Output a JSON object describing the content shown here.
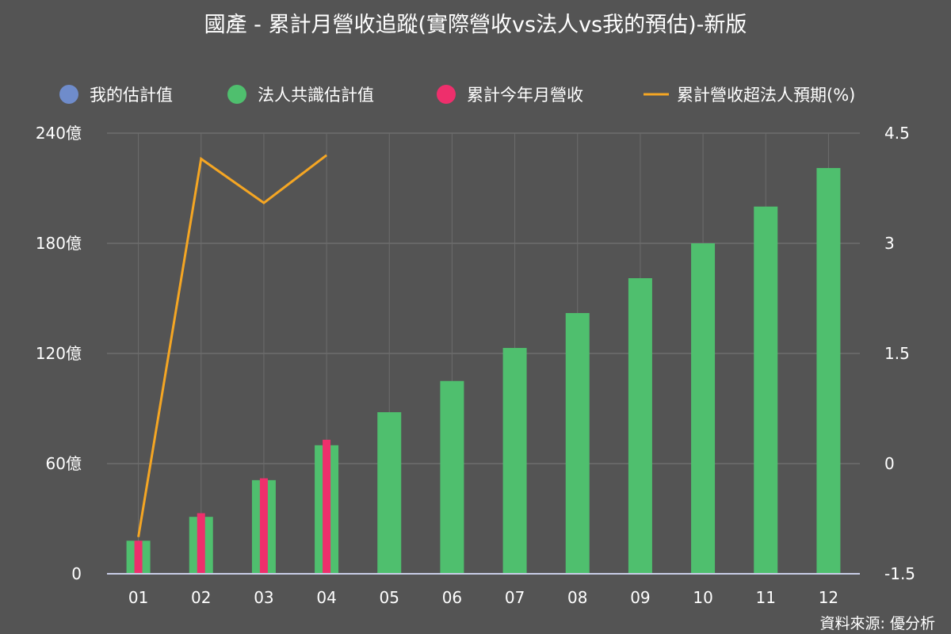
{
  "chart_data": {
    "type": "bar",
    "title": "國產 - 累計月營收追蹤(實際營收vs法人vs我的預估)-新版",
    "categories": [
      "01",
      "02",
      "03",
      "04",
      "05",
      "06",
      "07",
      "08",
      "09",
      "10",
      "11",
      "12"
    ],
    "legend": {
      "placement": "top",
      "items": [
        {
          "label": "我的估計值",
          "color": "#6f8ccb",
          "marker": "circle"
        },
        {
          "label": "法人共識估計值",
          "color": "#4fbf6e",
          "marker": "circle"
        },
        {
          "label": "累計今年月營收",
          "color": "#ee2f6c",
          "marker": "circle"
        },
        {
          "label": "累計營收超法人預期(%)",
          "color": "#f5a623",
          "marker": "line"
        }
      ]
    },
    "series": [
      {
        "name": "我的估計值",
        "type": "bar",
        "axis": "left",
        "color": "#6f8ccb",
        "values": [
          null,
          null,
          null,
          null,
          null,
          null,
          null,
          null,
          null,
          null,
          null,
          null
        ]
      },
      {
        "name": "法人共識估計值",
        "type": "bar",
        "axis": "left",
        "color": "#4fbf6e",
        "values": [
          18,
          31,
          51,
          70,
          88,
          105,
          123,
          142,
          161,
          180,
          200,
          221
        ]
      },
      {
        "name": "累計今年月營收",
        "type": "bar",
        "axis": "left",
        "color": "#ee2f6c",
        "values": [
          18,
          33,
          52,
          73,
          null,
          null,
          null,
          null,
          null,
          null,
          null,
          null
        ]
      },
      {
        "name": "累計營收超法人預期(%)",
        "type": "line",
        "axis": "right",
        "color": "#f5a623",
        "values": [
          -1.0,
          4.15,
          3.55,
          4.2,
          null,
          null,
          null,
          null,
          null,
          null,
          null,
          null
        ]
      }
    ],
    "y_left": {
      "min": 0,
      "max": 240,
      "ticks": [
        0,
        60,
        120,
        180,
        240
      ],
      "tick_labels": [
        "0",
        "60億",
        "120億",
        "180億",
        "240億"
      ]
    },
    "y_right": {
      "min": -1.5,
      "max": 4.5,
      "ticks": [
        -1.5,
        0,
        1.5,
        3,
        4.5
      ],
      "tick_labels": [
        "-1.5",
        "0",
        "1.5",
        "3",
        "4.5"
      ]
    },
    "grid": true
  },
  "source_label": "資料來源: 優分析"
}
